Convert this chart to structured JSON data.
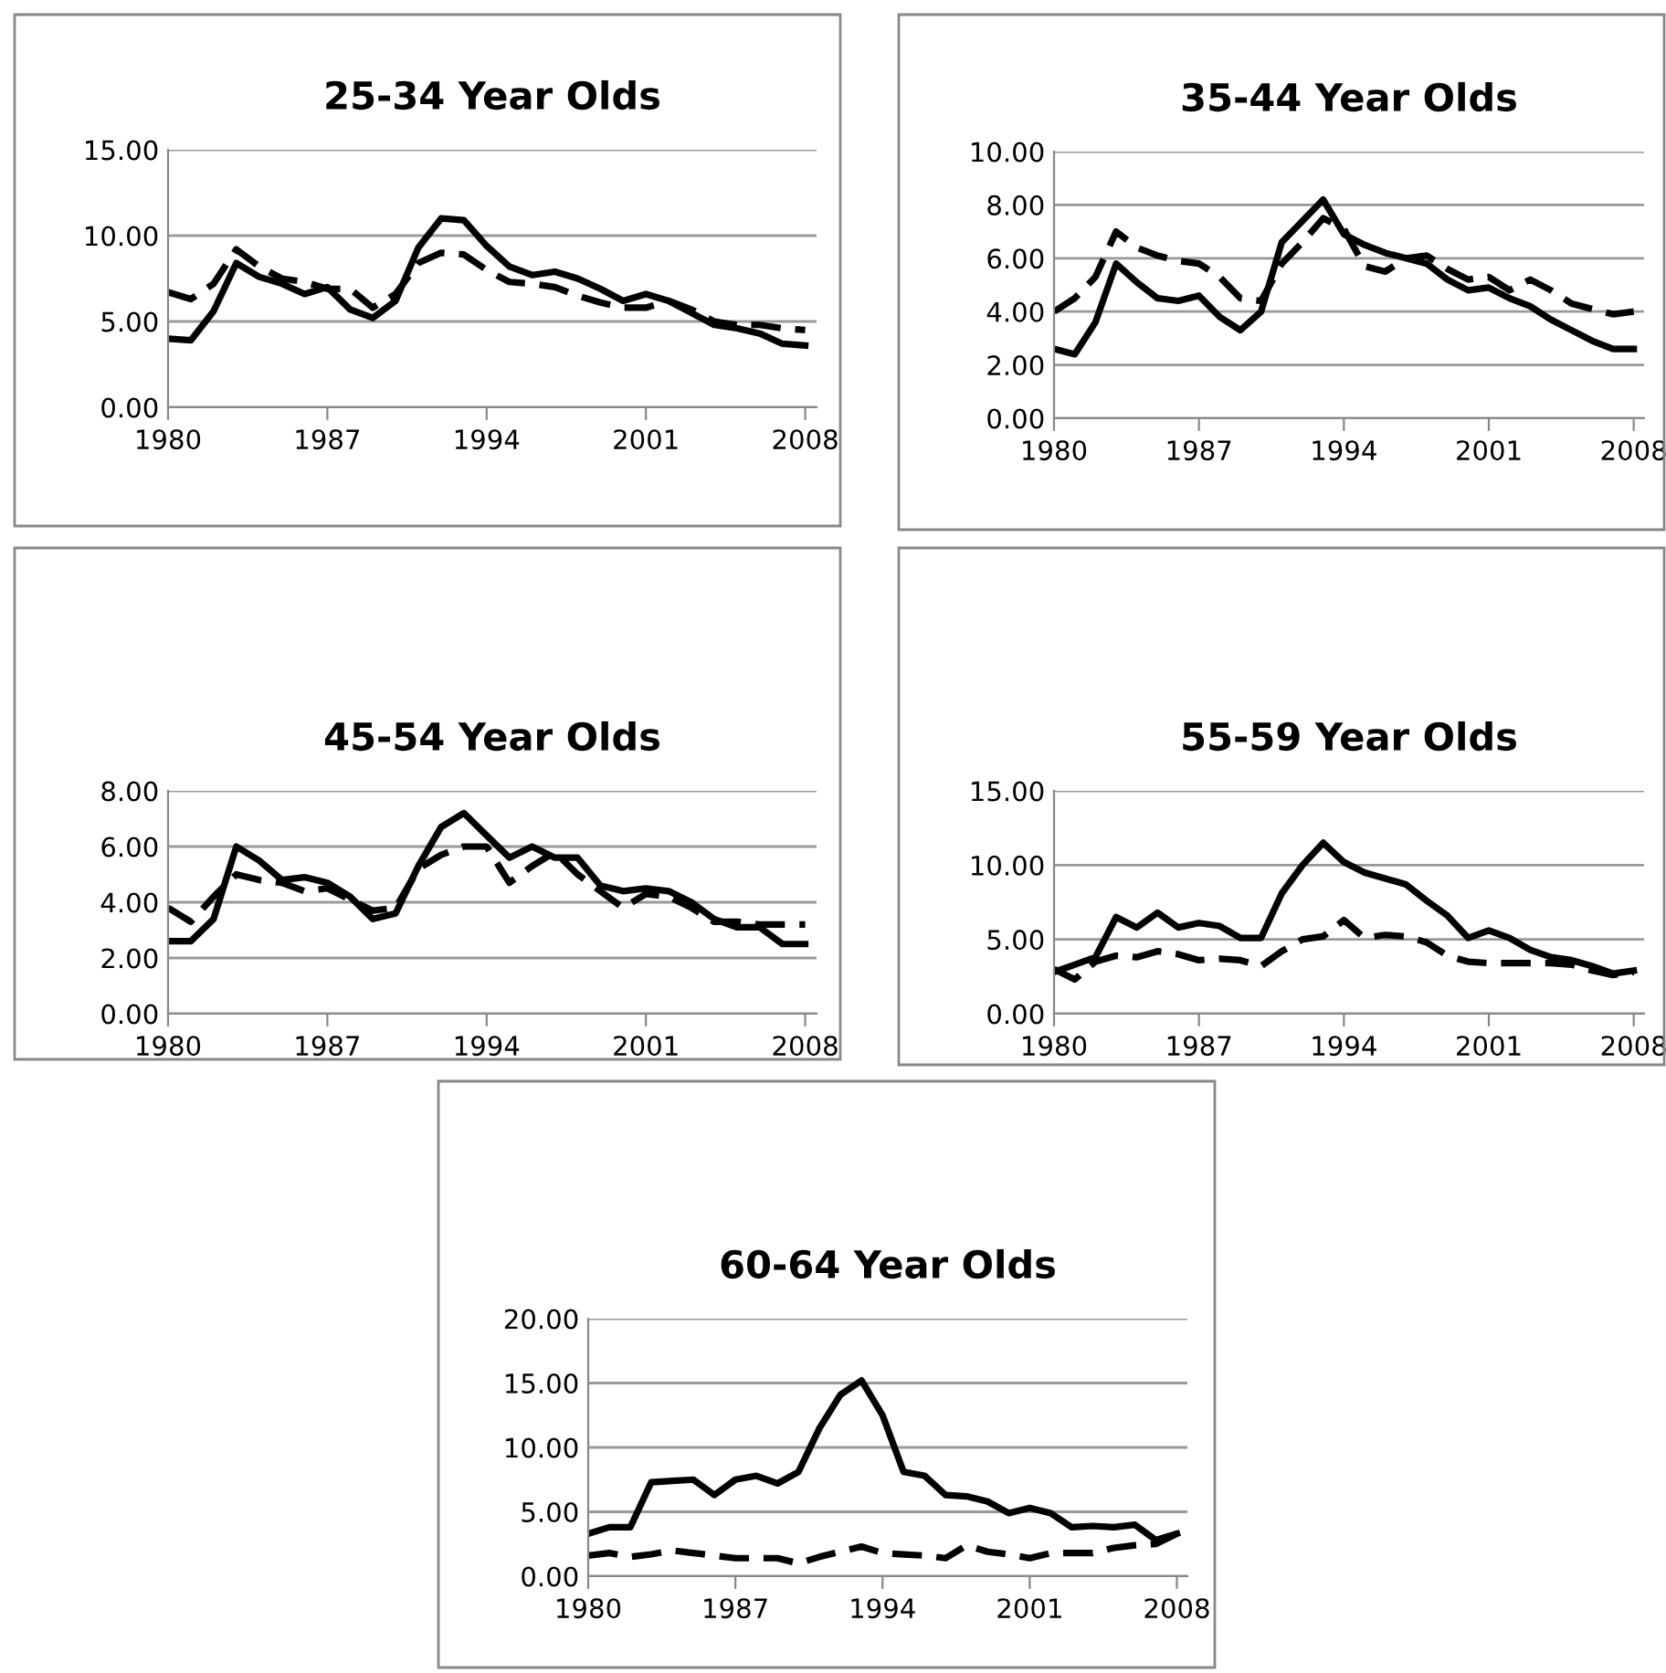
{
  "chart_data": [
    {
      "type": "line",
      "title": "25-34 Year Olds",
      "x": [
        1980,
        1981,
        1982,
        1983,
        1984,
        1985,
        1986,
        1987,
        1988,
        1989,
        1990,
        1991,
        1992,
        1993,
        1994,
        1995,
        1996,
        1997,
        1998,
        1999,
        2000,
        2001,
        2002,
        2003,
        2004,
        2005,
        2006,
        2007,
        2008
      ],
      "series": [
        {
          "color": "#000000",
          "line_style": "solid",
          "values": [
            4.0,
            3.9,
            5.6,
            8.4,
            7.6,
            7.2,
            6.6,
            7.0,
            5.7,
            5.2,
            6.2,
            9.3,
            11.0,
            10.9,
            9.4,
            8.2,
            7.7,
            7.9,
            7.5,
            6.9,
            6.2,
            6.6,
            6.2,
            5.5,
            4.8,
            4.6,
            4.3,
            3.7,
            3.6
          ]
        },
        {
          "color": "#000000",
          "line_style": "dashed",
          "values": [
            6.7,
            6.3,
            7.2,
            9.2,
            8.2,
            7.5,
            7.3,
            6.9,
            6.9,
            5.8,
            6.6,
            8.4,
            9.0,
            8.9,
            8.0,
            7.3,
            7.2,
            7.0,
            6.5,
            6.1,
            5.8,
            5.8,
            6.2,
            5.7,
            5.0,
            4.8,
            4.8,
            4.6,
            4.5
          ]
        }
      ],
      "xlim": [
        1980,
        2008.5
      ],
      "xticks": [
        1980,
        1987,
        1994,
        2001,
        2008
      ],
      "ylim": [
        0,
        15
      ],
      "yticks": [
        {
          "value": 0,
          "label": "0.00"
        },
        {
          "value": 5,
          "label": "5.00"
        },
        {
          "value": 10,
          "label": "10.00"
        },
        {
          "value": 15,
          "label": "15.00"
        }
      ],
      "grid": "y",
      "legend": false,
      "marker": "none"
    },
    {
      "type": "line",
      "title": "35-44 Year Olds",
      "x": [
        1980,
        1981,
        1982,
        1983,
        1984,
        1985,
        1986,
        1987,
        1988,
        1989,
        1990,
        1991,
        1992,
        1993,
        1994,
        1995,
        1996,
        1997,
        1998,
        1999,
        2000,
        2001,
        2002,
        2003,
        2004,
        2005,
        2006,
        2007,
        2008
      ],
      "series": [
        {
          "color": "#000000",
          "line_style": "solid",
          "values": [
            2.6,
            2.4,
            3.6,
            5.8,
            5.1,
            4.5,
            4.4,
            4.6,
            3.8,
            3.3,
            4.0,
            6.6,
            7.4,
            8.2,
            6.9,
            6.5,
            6.2,
            6.0,
            5.8,
            5.2,
            4.8,
            4.9,
            4.5,
            4.2,
            3.7,
            3.3,
            2.9,
            2.6,
            2.6
          ]
        },
        {
          "color": "#000000",
          "line_style": "dashed",
          "values": [
            4.0,
            4.5,
            5.3,
            7.0,
            6.4,
            6.1,
            5.9,
            5.8,
            5.3,
            4.5,
            4.4,
            5.8,
            6.6,
            7.5,
            7.1,
            5.7,
            5.5,
            6.0,
            6.1,
            5.6,
            5.2,
            5.3,
            4.8,
            5.2,
            4.8,
            4.3,
            4.1,
            3.9,
            4.0
          ]
        }
      ],
      "xlim": [
        1980,
        2008.5
      ],
      "xticks": [
        1980,
        1987,
        1994,
        2001,
        2008
      ],
      "ylim": [
        0,
        10
      ],
      "yticks": [
        {
          "value": 0,
          "label": "0.00"
        },
        {
          "value": 2,
          "label": "2.00"
        },
        {
          "value": 4,
          "label": "4.00"
        },
        {
          "value": 6,
          "label": "6.00"
        },
        {
          "value": 8,
          "label": "8.00"
        },
        {
          "value": 10,
          "label": "10.00"
        }
      ],
      "grid": "y",
      "legend": false,
      "marker": "none"
    },
    {
      "type": "line",
      "title": "45-54 Year Olds",
      "x": [
        1980,
        1981,
        1982,
        1983,
        1984,
        1985,
        1986,
        1987,
        1988,
        1989,
        1990,
        1991,
        1992,
        1993,
        1994,
        1995,
        1996,
        1997,
        1998,
        1999,
        2000,
        2001,
        2002,
        2003,
        2004,
        2005,
        2006,
        2007,
        2008
      ],
      "series": [
        {
          "color": "#000000",
          "line_style": "solid",
          "values": [
            2.6,
            2.6,
            3.4,
            6.0,
            5.5,
            4.8,
            4.9,
            4.7,
            4.2,
            3.4,
            3.6,
            5.3,
            6.7,
            7.2,
            6.4,
            5.6,
            6.0,
            5.6,
            5.6,
            4.6,
            4.4,
            4.5,
            4.4,
            4.0,
            3.4,
            3.1,
            3.1,
            2.5,
            2.5
          ]
        },
        {
          "color": "#000000",
          "line_style": "dashed",
          "values": [
            3.8,
            3.3,
            4.2,
            5.0,
            4.8,
            4.7,
            4.4,
            4.5,
            4.1,
            3.7,
            3.8,
            5.2,
            5.7,
            6.0,
            6.0,
            4.7,
            5.3,
            5.8,
            5.0,
            4.4,
            3.8,
            4.3,
            4.2,
            3.8,
            3.3,
            3.3,
            3.2,
            3.2,
            3.2
          ]
        }
      ],
      "xlim": [
        1980,
        2008.5
      ],
      "xticks": [
        1980,
        1987,
        1994,
        2001,
        2008
      ],
      "ylim": [
        0,
        8
      ],
      "yticks": [
        {
          "value": 0,
          "label": "0.00"
        },
        {
          "value": 2,
          "label": "2.00"
        },
        {
          "value": 4,
          "label": "4.00"
        },
        {
          "value": 6,
          "label": "6.00"
        },
        {
          "value": 8,
          "label": "8.00"
        }
      ],
      "grid": "y",
      "legend": false,
      "marker": "none"
    },
    {
      "type": "line",
      "title": "55-59 Year Olds",
      "x": [
        1980,
        1981,
        1982,
        1983,
        1984,
        1985,
        1986,
        1987,
        1988,
        1989,
        1990,
        1991,
        1992,
        1993,
        1994,
        1995,
        1996,
        1997,
        1998,
        1999,
        2000,
        2001,
        2002,
        2003,
        2004,
        2005,
        2006,
        2007,
        2008
      ],
      "series": [
        {
          "color": "#000000",
          "line_style": "solid",
          "values": [
            2.8,
            3.3,
            3.8,
            6.5,
            5.8,
            6.8,
            5.8,
            6.1,
            5.9,
            5.1,
            5.1,
            8.1,
            10.0,
            11.5,
            10.2,
            9.5,
            9.1,
            8.7,
            7.6,
            6.6,
            5.1,
            5.6,
            5.1,
            4.3,
            3.8,
            3.6,
            3.2,
            2.7,
            2.9
          ]
        },
        {
          "color": "#000000",
          "line_style": "dashed",
          "values": [
            3.0,
            2.3,
            3.5,
            3.9,
            3.8,
            4.2,
            4.0,
            3.6,
            3.7,
            3.6,
            3.2,
            4.2,
            5.0,
            5.2,
            6.3,
            5.1,
            5.3,
            5.2,
            4.8,
            3.9,
            3.5,
            3.4,
            3.4,
            3.4,
            3.4,
            3.3,
            2.9,
            2.6,
            2.8
          ]
        }
      ],
      "xlim": [
        1980,
        2008.5
      ],
      "xticks": [
        1980,
        1987,
        1994,
        2001,
        2008
      ],
      "ylim": [
        0,
        15
      ],
      "yticks": [
        {
          "value": 0,
          "label": "0.00"
        },
        {
          "value": 5,
          "label": "5.00"
        },
        {
          "value": 10,
          "label": "10.00"
        },
        {
          "value": 15,
          "label": "15.00"
        }
      ],
      "grid": "y",
      "legend": false,
      "marker": "none"
    },
    {
      "type": "line",
      "title": "60-64 Year Olds",
      "x": [
        1980,
        1981,
        1982,
        1983,
        1984,
        1985,
        1986,
        1987,
        1988,
        1989,
        1990,
        1991,
        1992,
        1993,
        1994,
        1995,
        1996,
        1997,
        1998,
        1999,
        2000,
        2001,
        2002,
        2003,
        2004,
        2005,
        2006,
        2007,
        2008
      ],
      "series": [
        {
          "color": "#000000",
          "line_style": "solid",
          "values": [
            3.3,
            3.8,
            3.8,
            7.3,
            7.4,
            7.5,
            6.3,
            7.5,
            7.8,
            7.2,
            8.1,
            11.5,
            14.1,
            15.2,
            12.5,
            8.1,
            7.8,
            6.3,
            6.2,
            5.8,
            4.9,
            5.3,
            4.9,
            3.8,
            3.9,
            3.8,
            4.0,
            2.8,
            3.3
          ]
        },
        {
          "color": "#000000",
          "line_style": "dashed",
          "values": [
            1.6,
            1.8,
            1.5,
            1.7,
            2.0,
            1.8,
            1.6,
            1.4,
            1.4,
            1.4,
            1.0,
            1.5,
            1.9,
            2.3,
            1.8,
            1.7,
            1.6,
            1.4,
            2.4,
            1.9,
            1.7,
            1.4,
            1.8,
            1.8,
            1.8,
            2.2,
            2.4,
            2.5,
            3.3
          ]
        }
      ],
      "xlim": [
        1980,
        2008.5
      ],
      "xticks": [
        1980,
        1987,
        1994,
        2001,
        2008
      ],
      "ylim": [
        0,
        20
      ],
      "yticks": [
        {
          "value": 0,
          "label": "0.00"
        },
        {
          "value": 5,
          "label": "5.00"
        },
        {
          "value": 10,
          "label": "10.00"
        },
        {
          "value": 15,
          "label": "15.00"
        },
        {
          "value": 20,
          "label": "20.00"
        }
      ],
      "grid": "y",
      "legend": false,
      "marker": "none"
    }
  ]
}
